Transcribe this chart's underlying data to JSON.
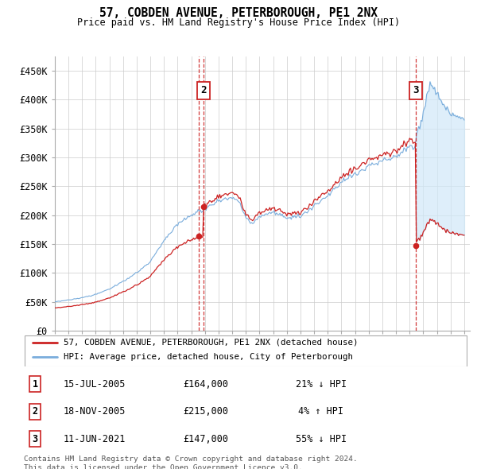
{
  "title": "57, COBDEN AVENUE, PETERBOROUGH, PE1 2NX",
  "subtitle": "Price paid vs. HM Land Registry's House Price Index (HPI)",
  "ylim": [
    0,
    475000
  ],
  "yticks": [
    0,
    50000,
    100000,
    150000,
    200000,
    250000,
    300000,
    350000,
    400000,
    450000
  ],
  "ytick_labels": [
    "£0",
    "£50K",
    "£100K",
    "£150K",
    "£200K",
    "£250K",
    "£300K",
    "£350K",
    "£400K",
    "£450K"
  ],
  "background_color": "#ffffff",
  "grid_color": "#cccccc",
  "hpi_line_color": "#7aaddc",
  "price_line_color": "#cc2222",
  "fill_color": "#d0e8f8",
  "transactions": [
    {
      "date": "2005-07-15",
      "price": 164000,
      "label": "1",
      "show_box": false
    },
    {
      "date": "2005-11-18",
      "price": 215000,
      "label": "2",
      "show_box": true
    },
    {
      "date": "2021-06-11",
      "price": 147000,
      "label": "3",
      "show_box": true
    }
  ],
  "transaction_details": [
    {
      "num": "1",
      "date_str": "15-JUL-2005",
      "price_str": "£164,000",
      "hpi_str": "21% ↓ HPI"
    },
    {
      "num": "2",
      "date_str": "18-NOV-2005",
      "price_str": "£215,000",
      "hpi_str": "4% ↑ HPI"
    },
    {
      "num": "3",
      "date_str": "11-JUN-2021",
      "price_str": "£147,000",
      "hpi_str": "55% ↓ HPI"
    }
  ],
  "legend_entries": [
    {
      "label": "57, COBDEN AVENUE, PETERBOROUGH, PE1 2NX (detached house)",
      "color": "#cc2222"
    },
    {
      "label": "HPI: Average price, detached house, City of Peterborough",
      "color": "#7aaddc"
    }
  ],
  "footer_text": "Contains HM Land Registry data © Crown copyright and database right 2024.\nThis data is licensed under the Open Government Licence v3.0."
}
